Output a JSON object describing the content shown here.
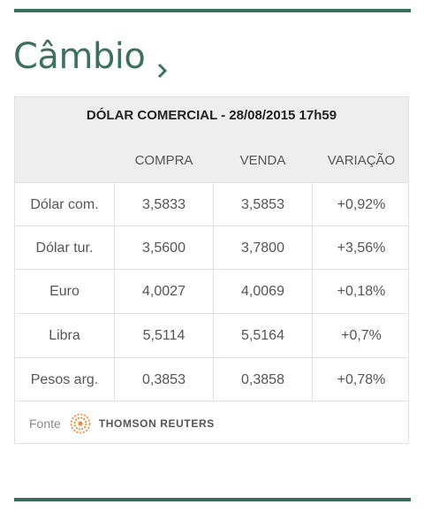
{
  "header": {
    "title": "Câmbio"
  },
  "table": {
    "caption": "DÓLAR COMERCIAL - 28/08/2015 17h59",
    "columns": [
      "COMPRA",
      "VENDA",
      "VARIAÇÃO"
    ],
    "rows": [
      {
        "name": "Dólar com.",
        "buy": "3,5833",
        "sell": "3,5853",
        "change": "+0,92%"
      },
      {
        "name": "Dólar tur.",
        "buy": "3,5600",
        "sell": "3,7800",
        "change": "+3,56%"
      },
      {
        "name": "Euro",
        "buy": "4,0027",
        "sell": "4,0069",
        "change": "+0,18%"
      },
      {
        "name": "Libra",
        "buy": "5,5114",
        "sell": "5,5164",
        "change": "+0,7%"
      },
      {
        "name": "Pesos arg.",
        "buy": "0,3853",
        "sell": "0,3858",
        "change": "+0,78%"
      }
    ]
  },
  "source": {
    "label": "Fonte",
    "brand": "THOMSON REUTERS",
    "logo_icon": "thomson-reuters-logo-icon"
  },
  "colors": {
    "accent": "#3a725c",
    "rule": "#3c6b58",
    "header_bg": "#eeeeee",
    "logo": "#f08a3c"
  }
}
